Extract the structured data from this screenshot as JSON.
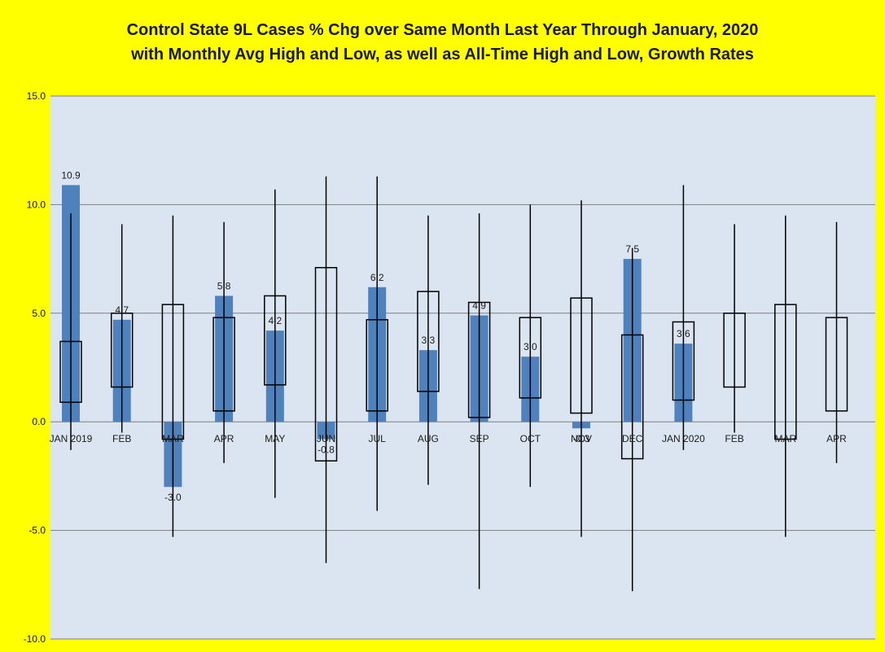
{
  "chart_data": {
    "type": "bar",
    "title": "Control State 9L Cases % Chg over Same Month Last Year Through January, 2020",
    "subtitle": "with Monthly Avg High and Low, as well as All-Time High and Low,  Growth Rates",
    "xlabel": "",
    "ylabel": "",
    "ylim": [
      -10,
      15
    ],
    "yticks": [
      -10,
      -5,
      0,
      5,
      10,
      15
    ],
    "ytick_labels": [
      "-10.0",
      "-5.0",
      "0.0",
      "5.0",
      "10.0",
      "15.0"
    ],
    "grid": true,
    "categories": [
      "JAN 2019",
      "FEB",
      "MAR",
      "APR",
      "MAY",
      "JUN",
      "JUL",
      "AUG",
      "SEP",
      "OCT",
      "NOV",
      "DEC",
      "JAN 2020",
      "FEB",
      "MAR",
      "APR"
    ],
    "series": [
      {
        "type": "bar",
        "color": "#4f81bd",
        "values": [
          10.9,
          4.7,
          -3.0,
          5.8,
          4.2,
          -0.8,
          6.2,
          3.3,
          4.9,
          3.0,
          -0.3,
          7.5,
          3.6,
          null,
          null,
          null
        ],
        "labels": [
          "10.9",
          "4.7",
          "-3.0",
          "5.8",
          "4.2",
          "-0.8",
          "6.2",
          "3.3",
          "4.9",
          "3.0",
          "-0.3",
          "7.5",
          "3.6",
          "",
          "",
          ""
        ]
      },
      {
        "type": "range-box",
        "avg_high": [
          3.7,
          5.0,
          5.4,
          4.8,
          5.8,
          7.1,
          4.7,
          6.0,
          5.5,
          4.8,
          5.7,
          4.0,
          4.6,
          5.0,
          5.4,
          4.8
        ],
        "avg_low": [
          0.9,
          1.6,
          -0.8,
          0.5,
          1.7,
          -1.8,
          0.5,
          1.4,
          0.2,
          1.1,
          0.4,
          -1.7,
          1.0,
          1.6,
          -0.8,
          0.5
        ]
      },
      {
        "type": "range-line",
        "all_time_high": [
          9.6,
          9.1,
          9.5,
          9.2,
          10.7,
          11.3,
          11.3,
          9.5,
          9.6,
          10.0,
          10.2,
          8.0,
          10.9,
          9.1,
          9.5,
          9.2
        ],
        "all_time_low": [
          -1.3,
          -0.5,
          -5.3,
          -1.9,
          -3.5,
          -6.5,
          -4.1,
          -2.9,
          -7.7,
          -3.0,
          -5.3,
          -7.8,
          -1.3,
          -0.5,
          -5.3,
          -1.9
        ]
      }
    ],
    "colors": {
      "background": "#ffff00",
      "plot_background": "#dbe5f1",
      "bar": "#4f81bd",
      "gridline": "#7f7f7f"
    }
  }
}
